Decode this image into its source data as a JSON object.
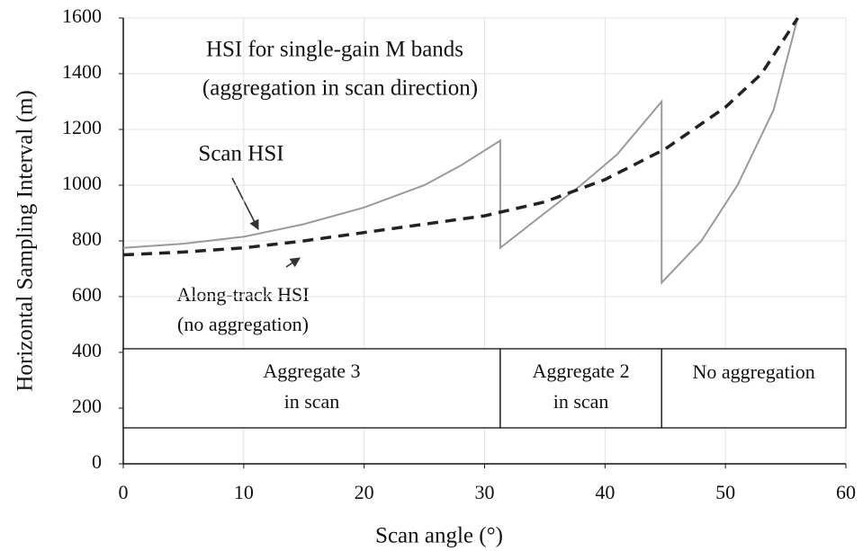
{
  "chart_data": {
    "type": "line",
    "ylabel": "Horizontal Sampling Interval (m)",
    "xlabel": "Scan angle (°)",
    "xlim": [
      0,
      60
    ],
    "xticks": [
      0,
      10,
      20,
      30,
      40,
      50,
      60
    ],
    "ylim": [
      0,
      1600
    ],
    "yticks": [
      0,
      200,
      400,
      600,
      800,
      1000,
      1200,
      1400,
      1600
    ],
    "grid": true,
    "series": [
      {
        "name": "Scan HSI",
        "color": "#9a9a9a",
        "dashed": false,
        "x": [
          0,
          5,
          10,
          15,
          20,
          25,
          28,
          31.3,
          31.3,
          35,
          38,
          41,
          44.7,
          44.7,
          48,
          51,
          54,
          56
        ],
        "values": [
          775,
          790,
          815,
          860,
          920,
          1000,
          1070,
          1160,
          775,
          900,
          1000,
          1110,
          1300,
          650,
          800,
          1000,
          1270,
          1600
        ]
      },
      {
        "name": "Along-track HSI",
        "color": "#222222",
        "dashed": true,
        "x": [
          0,
          5,
          10,
          15,
          20,
          25,
          30,
          35,
          40,
          45,
          50,
          53,
          56
        ],
        "values": [
          750,
          760,
          775,
          800,
          830,
          860,
          890,
          940,
          1020,
          1130,
          1280,
          1400,
          1600
        ]
      }
    ],
    "annotations": [
      "HSI for single-gain M bands",
      "(aggregation in scan direction)",
      "(no aggregation)"
    ],
    "regions": [
      {
        "from": 0,
        "to": 31.3,
        "label": [
          "Aggregate 3",
          "in scan"
        ]
      },
      {
        "from": 31.3,
        "to": 44.7,
        "label": [
          "Aggregate 2",
          "in scan"
        ]
      },
      {
        "from": 44.7,
        "to": 60,
        "label": [
          "No aggregation"
        ]
      }
    ]
  }
}
